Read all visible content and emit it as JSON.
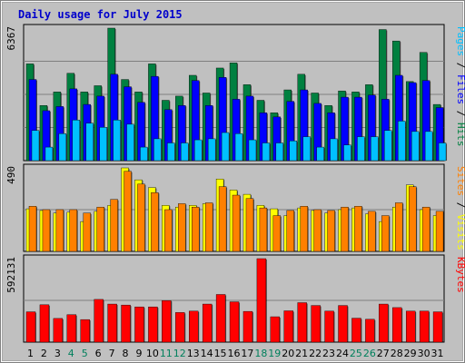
{
  "chart_data": {
    "type": "bar",
    "title": "Daily usage for July 2015",
    "colors": {
      "background": "#c0c0c0",
      "frame_outer": "#c0c0c0",
      "frame_dark": "#808080",
      "hits": "#008040",
      "files": "#0000ff",
      "pages": "#00c0ff",
      "visits": "#ffff00",
      "sites": "#ff8000",
      "kbytes": "#ff0000",
      "weekend_tick": "#00805c",
      "weekday_tick": "#000000",
      "title": "#0000cc"
    },
    "days": [
      "1",
      "2",
      "3",
      "4",
      "5",
      "6",
      "7",
      "8",
      "9",
      "10",
      "11",
      "12",
      "13",
      "14",
      "15",
      "16",
      "17",
      "18",
      "19",
      "20",
      "21",
      "22",
      "23",
      "24",
      "25",
      "26",
      "27",
      "28",
      "29",
      "30",
      "31"
    ],
    "weekend_days": [
      "4",
      "5",
      "11",
      "12",
      "18",
      "19",
      "25",
      "26"
    ],
    "panels": [
      {
        "id": "hits_files_pages",
        "ymax_label": "6367",
        "ymax": 6367,
        "legend": [
          {
            "text": "Pages",
            "color": "#00c0ff"
          },
          {
            "text": " / ",
            "color": "#000000"
          },
          {
            "text": "Files",
            "color": "#0000ff"
          },
          {
            "text": " / ",
            "color": "#000000"
          },
          {
            "text": "Hits",
            "color": "#008040"
          }
        ],
        "series": [
          {
            "name": "Hits",
            "color": "#008040",
            "values": [
              4650,
              2650,
              3300,
              4200,
              3300,
              3600,
              6367,
              3900,
              3300,
              4650,
              2900,
              3100,
              4100,
              3250,
              4450,
              4700,
              3650,
              2900,
              2300,
              3400,
              4150,
              3250,
              2650,
              3350,
              3300,
              3650,
              6300,
              5750,
              3800,
              5200,
              2700
            ]
          },
          {
            "name": "Files",
            "color": "#0000ff",
            "values": [
              3900,
              2400,
              2600,
              3450,
              2700,
              3100,
              4150,
              3550,
              2800,
              4050,
              2450,
              2650,
              3850,
              2650,
              4000,
              2950,
              3100,
              2300,
              2100,
              2850,
              3400,
              2750,
              2300,
              3050,
              3050,
              3150,
              2950,
              4100,
              3750,
              3850,
              2550
            ]
          },
          {
            "name": "Pages",
            "color": "#00c0ff",
            "values": [
              1450,
              650,
              1300,
              1950,
              1800,
              1600,
              1950,
              1750,
              650,
              1050,
              850,
              850,
              1000,
              1050,
              1350,
              1300,
              1000,
              850,
              850,
              950,
              1150,
              650,
              1050,
              750,
              1150,
              1150,
              1450,
              1900,
              1400,
              1400,
              850
            ]
          }
        ]
      },
      {
        "id": "visits_sites",
        "ymax_label": "490",
        "ymax": 490,
        "legend": [
          {
            "text": "Sites",
            "color": "#ff8000"
          },
          {
            "text": " / ",
            "color": "#000000"
          },
          {
            "text": "Visits",
            "color": "#ffff00"
          }
        ],
        "series": [
          {
            "name": "Visits",
            "color": "#ffff00",
            "values": [
              250,
              240,
              225,
              230,
              175,
              235,
              270,
              490,
              420,
              375,
              270,
              260,
              270,
              280,
              425,
              360,
              335,
              270,
              250,
              210,
              255,
              240,
              225,
              245,
              255,
              220,
              175,
              260,
              390,
              245,
              210
            ]
          },
          {
            "name": "Sites",
            "color": "#ff8000",
            "values": [
              265,
              245,
              245,
              245,
              225,
              260,
              305,
              470,
              395,
              345,
              245,
              280,
              260,
              285,
              380,
              330,
              310,
              255,
              210,
              240,
              265,
              245,
              240,
              260,
              265,
              235,
              210,
              285,
              380,
              260,
              235
            ]
          }
        ]
      },
      {
        "id": "kbytes",
        "ymax_label": "592131",
        "ymax": 592131,
        "legend": [
          {
            "text": "KBytes",
            "color": "#ff0000"
          }
        ],
        "series": [
          {
            "name": "KBytes",
            "color": "#ff0000",
            "values": [
              215000,
              265000,
              168000,
              195000,
              160000,
              303000,
              270000,
              263000,
              250000,
              250000,
              295000,
              210000,
              220000,
              270000,
              338000,
              286000,
              218000,
              592131,
              180000,
              222000,
              280000,
              260000,
              220000,
              260000,
              170000,
              162000,
              270000,
              245000,
              220000,
              220000,
              215000
            ]
          }
        ]
      }
    ]
  }
}
